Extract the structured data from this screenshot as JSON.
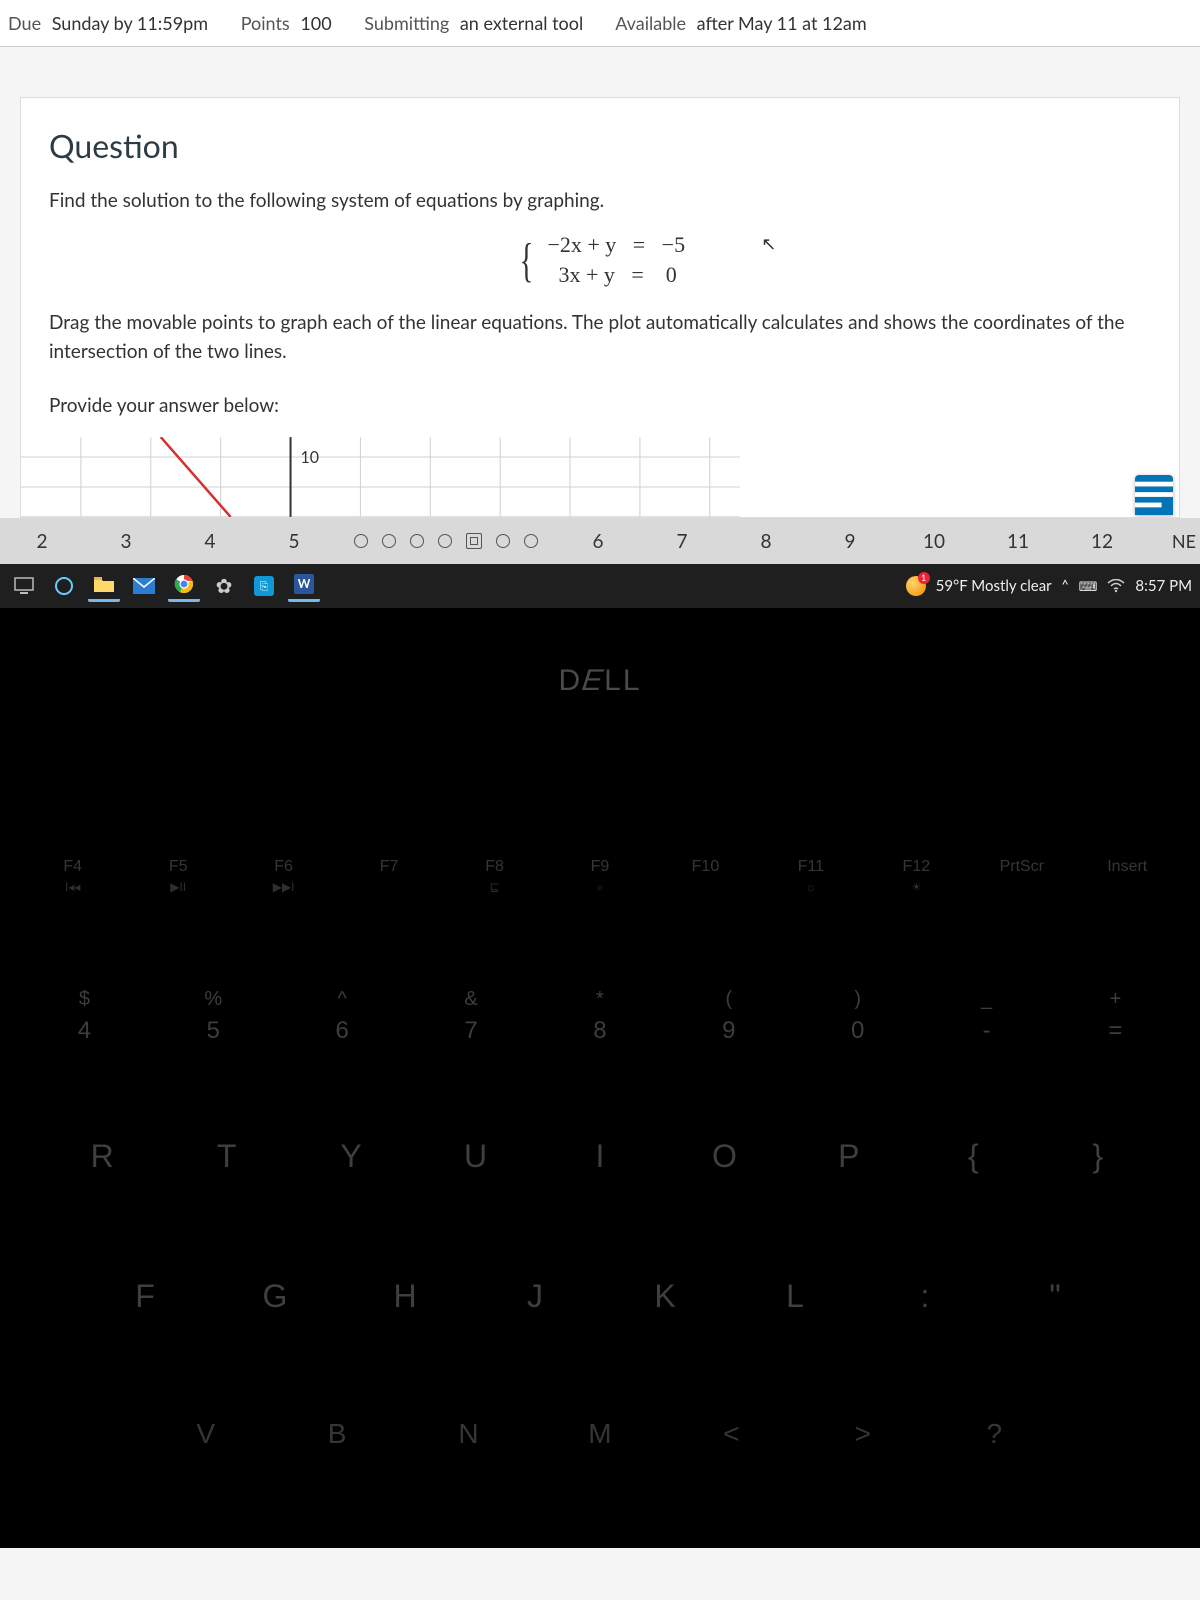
{
  "header": {
    "due_label": "Due",
    "due_value": "Sunday by 11:59pm",
    "points_label": "Points",
    "points_value": "100",
    "submitting_label": "Submitting",
    "submitting_value": "an external tool",
    "available_label": "Available",
    "available_value": "after May 11 at 12am"
  },
  "question": {
    "heading": "Question",
    "prompt": "Find the solution to the following system of equations by graphing.",
    "eq1": "−2x + y   =   −5",
    "eq2": "  3x + y   =    0",
    "instructions": "Drag the movable points to graph each of the linear equations. The plot automatically calculates and shows the coordinates of the intersection of the two lines.",
    "provide": "Provide your answer below:",
    "y_tick": "10"
  },
  "tabstrip": {
    "nums": [
      "2",
      "3",
      "4",
      "5",
      "6",
      "7",
      "8",
      "9",
      "10",
      "11",
      "12"
    ],
    "ne": "NE"
  },
  "taskbar": {
    "weather_text": "59°F  Mostly clear",
    "time": "8:57 PM"
  },
  "keyboard": {
    "logo": "DELL",
    "fn": [
      {
        "k": "F4",
        "s": "I◂◂"
      },
      {
        "k": "F5",
        "s": "▶II"
      },
      {
        "k": "F6",
        "s": "▶▶I"
      },
      {
        "k": "F7",
        "s": ""
      },
      {
        "k": "F8",
        "s": "⊑"
      },
      {
        "k": "F9",
        "s": "⌕"
      },
      {
        "k": "F10",
        "s": ""
      },
      {
        "k": "F11",
        "s": "☼"
      },
      {
        "k": "F12",
        "s": "☀"
      },
      {
        "k": "PrtScr",
        "s": ""
      },
      {
        "k": "Insert",
        "s": ""
      }
    ],
    "num": [
      {
        "s": "$",
        "n": "4"
      },
      {
        "s": "%",
        "n": "5"
      },
      {
        "s": "^",
        "n": "6"
      },
      {
        "s": "&",
        "n": "7"
      },
      {
        "s": "*",
        "n": "8"
      },
      {
        "s": "(",
        "n": "9"
      },
      {
        "s": ")",
        "n": "0"
      },
      {
        "s": "_",
        "n": "-"
      },
      {
        "s": "+",
        "n": "="
      }
    ],
    "qw": [
      "R",
      "T",
      "Y",
      "U",
      "I",
      "O",
      "P",
      "{",
      "}"
    ],
    "as": [
      "F",
      "G",
      "H",
      "J",
      "K",
      "L",
      ":",
      "\""
    ],
    "zx": [
      "V",
      "B",
      "N",
      "M",
      "<",
      ">",
      "?"
    ]
  },
  "colors": {
    "accent": "#0374b5",
    "graph_line": "#d0332f",
    "grid": "#d0d0d0"
  }
}
